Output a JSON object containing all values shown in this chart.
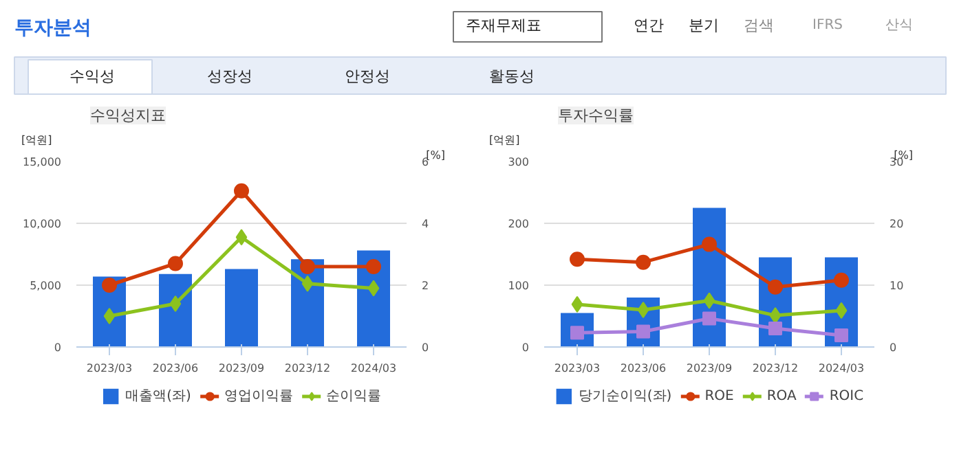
{
  "chart_data": [
    {
      "type": "bar",
      "title": "수익성지표",
      "annotations": [
        "투자분석",
        "주재무제표",
        "연간",
        "분기",
        "검색",
        "IFRS",
        "산식",
        "수익성",
        "성장성",
        "안정성",
        "활동성"
      ],
      "categories": [
        "2023/03",
        "2023/06",
        "2023/09",
        "2023/12",
        "2024/03"
      ],
      "series": [
        {
          "name": "매출액(좌)",
          "color": "#236cdb",
          "values": [
            5700,
            5900,
            6300,
            7100,
            7800
          ]
        },
        {
          "name": "영업이익률",
          "type": "line",
          "axis": "y2",
          "marker": "circle",
          "color": "#d23c0a",
          "values": [
            2.0,
            2.7,
            5.05,
            2.6,
            2.6
          ]
        },
        {
          "name": "순이익률",
          "type": "line",
          "axis": "y2",
          "marker": "diamond",
          "color": "#8cc21e",
          "values": [
            1.0,
            1.4,
            3.55,
            2.05,
            1.9
          ]
        }
      ],
      "ylabel": "[억원]",
      "y2label": "[%]",
      "ylim": [
        0,
        15000
      ],
      "yticks": [
        0,
        {
          "value": 5000,
          "label": "5,000"
        },
        {
          "value": 10000,
          "label": "10,000"
        },
        {
          "value": 15000,
          "label": "15,000"
        }
      ],
      "y2lim": [
        0,
        6
      ],
      "y2ticks": [
        0,
        2,
        4,
        6
      ],
      "grid": "y",
      "legend": "bottom"
    },
    {
      "type": "bar",
      "title": "투자수익률",
      "categories": [
        "2023/03",
        "2023/06",
        "2023/09",
        "2023/12",
        "2024/03"
      ],
      "series": [
        {
          "name": "당기순이익(좌)",
          "color": "#236cdb",
          "values": [
            55,
            80,
            225,
            145,
            145
          ]
        },
        {
          "name": "ROE",
          "type": "line",
          "axis": "y2",
          "marker": "circle",
          "color": "#d23c0a",
          "values": [
            14.2,
            13.7,
            16.6,
            9.7,
            10.8
          ]
        },
        {
          "name": "ROA",
          "type": "line",
          "axis": "y2",
          "marker": "diamond",
          "color": "#8cc21e",
          "values": [
            6.9,
            6.0,
            7.5,
            5.1,
            5.9
          ]
        },
        {
          "name": "ROIC",
          "type": "line",
          "axis": "y2",
          "marker": "square",
          "color": "#a97fdc",
          "values": [
            2.3,
            2.5,
            4.6,
            3.0,
            1.9
          ]
        }
      ],
      "ylabel": "[억원]",
      "y2label": "[%]",
      "ylim": [
        0,
        300
      ],
      "yticks": [
        0,
        100,
        200,
        300
      ],
      "y2lim": [
        0,
        30
      ],
      "y2ticks": [
        0,
        10,
        20,
        30
      ],
      "grid": "y",
      "legend": "bottom"
    }
  ]
}
